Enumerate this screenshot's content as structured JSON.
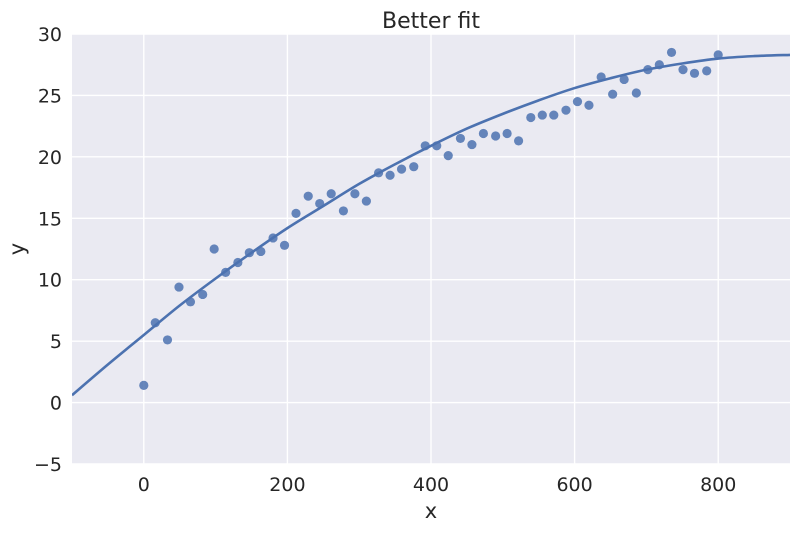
{
  "chart_data": {
    "type": "scatter",
    "title": "Better fit",
    "xlabel": "x",
    "ylabel": "y",
    "xlim": [
      -100,
      900
    ],
    "ylim": [
      -5,
      30
    ],
    "xticks": [
      0,
      200,
      400,
      600,
      800
    ],
    "xtick_labels": [
      "0",
      "200",
      "400",
      "600",
      "800"
    ],
    "yticks": [
      -5,
      0,
      5,
      10,
      15,
      20,
      25,
      30
    ],
    "ytick_labels": [
      "−5",
      "0",
      "5",
      "10",
      "15",
      "20",
      "25",
      "30"
    ],
    "grid": true,
    "colors": {
      "background": "#EAEAF2",
      "grid": "#FFFFFF",
      "series": "#4C72B0",
      "text": "#262626"
    },
    "series": [
      {
        "kind": "points",
        "x": [
          0,
          16,
          33,
          49,
          65,
          82,
          98,
          114,
          131,
          147,
          163,
          180,
          196,
          212,
          229,
          245,
          261,
          278,
          294,
          310,
          327,
          343,
          359,
          376,
          392,
          408,
          424,
          441,
          457,
          473,
          490,
          506,
          522,
          539,
          555,
          571,
          588,
          604,
          620,
          637,
          653,
          669,
          686,
          702,
          718,
          735,
          751,
          767,
          784,
          800
        ],
        "y": [
          1.4,
          6.5,
          5.1,
          9.4,
          8.2,
          8.8,
          12.5,
          10.6,
          11.4,
          12.2,
          12.3,
          13.4,
          12.8,
          15.4,
          16.8,
          16.2,
          17.0,
          15.6,
          17.0,
          16.4,
          18.7,
          18.5,
          19.0,
          19.2,
          20.9,
          20.9,
          20.1,
          21.5,
          21.0,
          21.9,
          21.7,
          21.9,
          21.3,
          23.2,
          23.4,
          23.4,
          23.8,
          24.5,
          24.2,
          26.5,
          25.1,
          26.3,
          25.2,
          27.1,
          27.5,
          28.5,
          27.1,
          26.8,
          27.0,
          28.3
        ]
      },
      {
        "kind": "fit-line",
        "x": [
          -100,
          -50,
          0,
          50,
          100,
          150,
          200,
          250,
          300,
          350,
          400,
          450,
          500,
          550,
          600,
          650,
          700,
          750,
          800,
          850,
          900
        ],
        "y": [
          0.6,
          3.1,
          5.5,
          7.9,
          10.1,
          12.2,
          14.2,
          16.0,
          17.8,
          19.4,
          20.9,
          22.3,
          23.5,
          24.6,
          25.6,
          26.4,
          27.1,
          27.6,
          28.0,
          28.2,
          28.3
        ]
      }
    ]
  }
}
